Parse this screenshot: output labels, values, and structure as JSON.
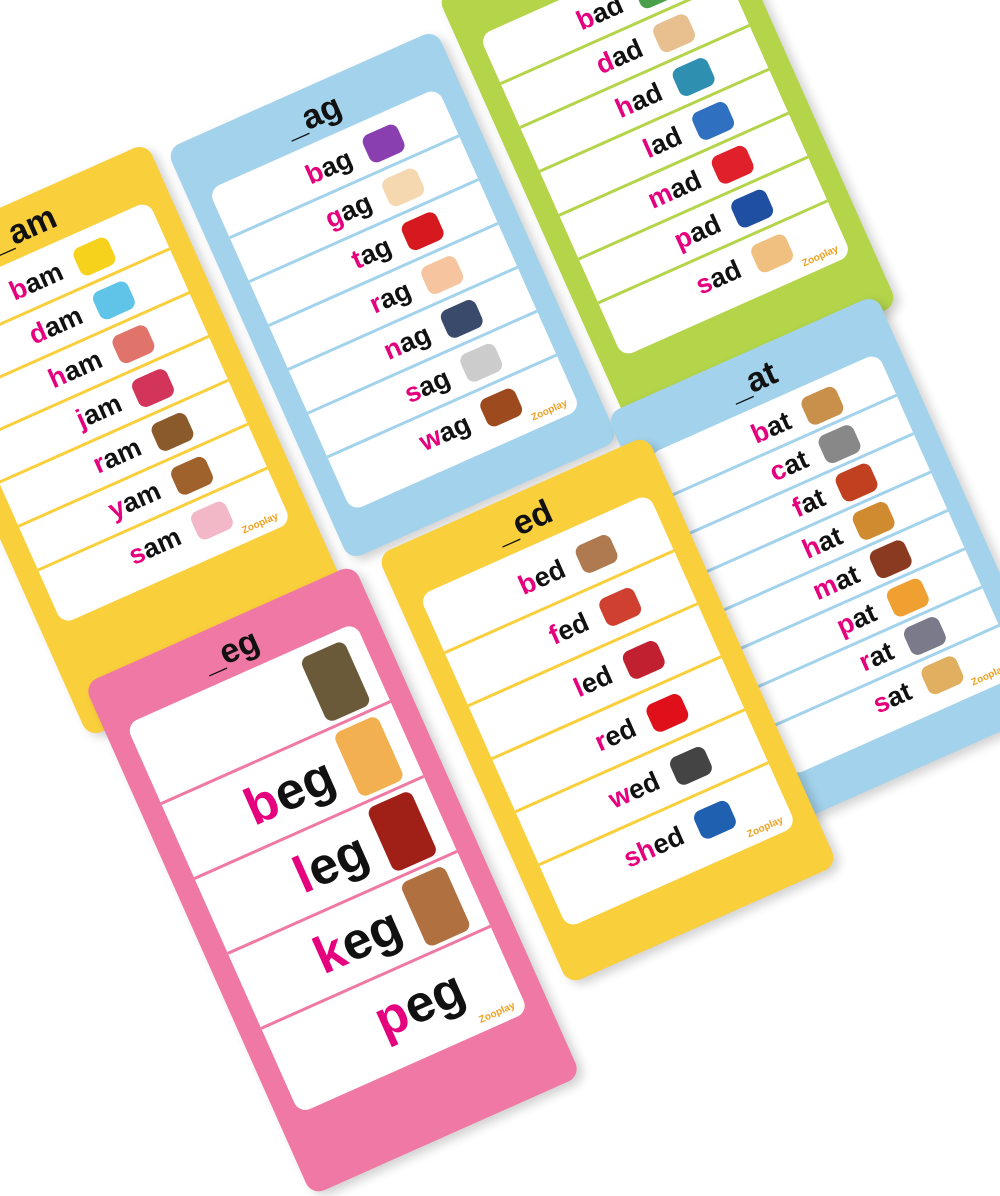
{
  "brand": "Zooplay",
  "colors": {
    "onset": "#e5007d",
    "yellow": "#f9cf3c",
    "blue": "#a3d3ec",
    "green": "#b4d44a",
    "pink": "#ef79a4"
  },
  "cards": [
    {
      "id": "am",
      "title": "_am",
      "color": "#f9cf3c",
      "words": [
        {
          "onset": "b",
          "rime": "am",
          "picture": "bam-burst",
          "pic_color": "#f7d21c"
        },
        {
          "onset": "d",
          "rime": "am",
          "picture": "dam",
          "pic_color": "#5fc4e8"
        },
        {
          "onset": "h",
          "rime": "am",
          "picture": "ham",
          "pic_color": "#e0736a"
        },
        {
          "onset": "j",
          "rime": "am",
          "picture": "jam-jar",
          "pic_color": "#d2345a"
        },
        {
          "onset": "r",
          "rime": "am",
          "picture": "ram",
          "pic_color": "#8b5a2b"
        },
        {
          "onset": "y",
          "rime": "am",
          "picture": "yam",
          "pic_color": "#a0622d"
        },
        {
          "onset": "s",
          "rime": "am",
          "picture": "boy-sam",
          "pic_color": "#f3b8c8"
        }
      ]
    },
    {
      "id": "ag",
      "title": "_ag",
      "color": "#a3d3ec",
      "words": [
        {
          "onset": "b",
          "rime": "ag",
          "picture": "shopping-bag",
          "pic_color": "#8a3fb0"
        },
        {
          "onset": "g",
          "rime": "ag",
          "picture": "gagging-baby",
          "pic_color": "#f5d7b0"
        },
        {
          "onset": "t",
          "rime": "ag",
          "picture": "price-tag",
          "pic_color": "#d6181f"
        },
        {
          "onset": "r",
          "rime": "ag",
          "picture": "rag-cloth",
          "pic_color": "#f7c4a0"
        },
        {
          "onset": "n",
          "rime": "ag",
          "picture": "nagging-people",
          "pic_color": "#3a4a6a"
        },
        {
          "onset": "s",
          "rime": "ag",
          "picture": "sagging-line",
          "pic_color": "#cccccc"
        },
        {
          "onset": "w",
          "rime": "ag",
          "picture": "dog-wag",
          "pic_color": "#9c4a1e"
        }
      ]
    },
    {
      "id": "ad",
      "title": "_ad",
      "color": "#b4d44a",
      "words": [
        {
          "onset": "b",
          "rime": "ad",
          "picture": "bad-kids",
          "pic_color": "#4aa04a"
        },
        {
          "onset": "d",
          "rime": "ad",
          "picture": "dad",
          "pic_color": "#e8c090"
        },
        {
          "onset": "h",
          "rime": "ad",
          "picture": "had-card",
          "pic_color": "#2f8fb0"
        },
        {
          "onset": "l",
          "rime": "ad",
          "picture": "lad",
          "pic_color": "#3070c0"
        },
        {
          "onset": "m",
          "rime": "ad",
          "picture": "mad-face",
          "pic_color": "#e0202a"
        },
        {
          "onset": "p",
          "rime": "ad",
          "picture": "clipboard-pad",
          "pic_color": "#1f4fa0"
        },
        {
          "onset": "s",
          "rime": "ad",
          "picture": "sad-boy",
          "pic_color": "#f0c080"
        }
      ]
    },
    {
      "id": "at",
      "title": "_at",
      "color": "#a3d3ec",
      "words": [
        {
          "onset": "b",
          "rime": "at",
          "picture": "cricket-bat",
          "pic_color": "#c8904a"
        },
        {
          "onset": "c",
          "rime": "at",
          "picture": "cat",
          "pic_color": "#888888"
        },
        {
          "onset": "f",
          "rime": "at",
          "picture": "fat-man",
          "pic_color": "#c04020"
        },
        {
          "onset": "h",
          "rime": "at",
          "picture": "hat",
          "pic_color": "#d08a30"
        },
        {
          "onset": "m",
          "rime": "at",
          "picture": "mat",
          "pic_color": "#8a3a20"
        },
        {
          "onset": "p",
          "rime": "at",
          "picture": "pat-cat",
          "pic_color": "#f0a030"
        },
        {
          "onset": "r",
          "rime": "at",
          "picture": "rat",
          "pic_color": "#7a7a8a"
        },
        {
          "onset": "s",
          "rime": "at",
          "picture": "sat-person",
          "pic_color": "#e0b060"
        }
      ]
    },
    {
      "id": "ed",
      "title": "_ed",
      "color": "#f9cf3c",
      "words": [
        {
          "onset": "b",
          "rime": "ed",
          "picture": "bed",
          "pic_color": "#b07a50"
        },
        {
          "onset": "f",
          "rime": "ed",
          "picture": "fed-birds",
          "pic_color": "#d04030"
        },
        {
          "onset": "l",
          "rime": "ed",
          "picture": "led-dancers",
          "pic_color": "#c02030"
        },
        {
          "onset": "r",
          "rime": "ed",
          "picture": "red-splash",
          "pic_color": "#e0101a"
        },
        {
          "onset": "w",
          "rime": "ed",
          "picture": "wedding-couple",
          "pic_color": "#444444"
        },
        {
          "onset": "sh",
          "rime": "ed",
          "picture": "car-shed",
          "pic_color": "#2060b0"
        }
      ]
    },
    {
      "id": "eg",
      "title": "_eg",
      "color": "#ef79a4",
      "big": true,
      "words": [
        {
          "onset": "",
          "rime": "",
          "picture": "beggar",
          "pic_color": "#6a5a3a"
        },
        {
          "onset": "b",
          "rime": "eg",
          "picture": "leg",
          "pic_color": "#f2b050"
        },
        {
          "onset": "l",
          "rime": "eg",
          "picture": "barrel-keg",
          "pic_color": "#a02018"
        },
        {
          "onset": "k",
          "rime": "eg",
          "picture": "coat-peg",
          "pic_color": "#b07040"
        },
        {
          "onset": "p",
          "rime": "eg",
          "picture": "",
          "pic_color": ""
        }
      ]
    }
  ]
}
